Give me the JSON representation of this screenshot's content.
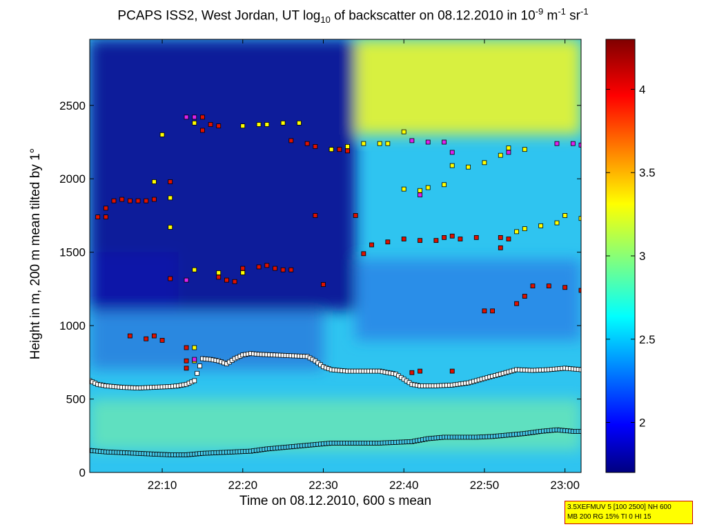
{
  "title": {
    "prefix": "PCAPS ISS2, West Jordan, UT log",
    "sub": "10",
    "middle": " of backscatter on 08.12.2010 in 10",
    "sup1": "-9",
    "unit1": " m",
    "sup2": "-1",
    "unit2": " sr",
    "sup3": "-1"
  },
  "info_box": {
    "line1": "3.5XEFMUV 5 [100 2500] NH 600",
    "line2": "MB 200 RG 15% TI 0 HI 15"
  },
  "colors": {
    "red_marker": "#dd1100",
    "yellow_marker": "#ffff00",
    "magenta_marker": "#dd22ee",
    "white_marker": "#ffffff",
    "cyan_marker": "#44c8e8"
  },
  "chart_data": {
    "type": "heatmap",
    "xlabel": "Time on 08.12.2010, 600 s mean",
    "ylabel": "Height in m, 200 m mean tilted by 1°",
    "xlim": [
      "22:01",
      "23:02"
    ],
    "ylim": [
      0,
      2950
    ],
    "xticks": [
      "22:10",
      "22:20",
      "22:30",
      "22:40",
      "22:50",
      "23:00"
    ],
    "yticks": [
      0,
      500,
      1000,
      1500,
      2000,
      2500
    ],
    "colorbar": {
      "range": [
        1.7,
        4.3
      ],
      "ticks": [
        2,
        2.5,
        3,
        3.5,
        4
      ],
      "colormap": "jet"
    },
    "grid": false,
    "background_field": [
      {
        "t_start": "22:01",
        "t_end": "22:34",
        "h_start": 1100,
        "h_end": 2950,
        "level": "low (< 2.0)"
      },
      {
        "t_start": "22:34",
        "t_end": "23:02",
        "h_start": 2300,
        "h_end": 2950,
        "level": "high (~3.0-3.3)"
      },
      {
        "t_start": "22:01",
        "t_end": "23:02",
        "h_start": 150,
        "h_end": 500,
        "level": "high (~2.8-3.0)"
      }
    ],
    "series": [
      {
        "marker": "square",
        "color": "white",
        "points": [
          [
            "22:01",
            625
          ],
          [
            "22:02",
            600
          ],
          [
            "22:03",
            590
          ],
          [
            "22:05",
            580
          ],
          [
            "22:07",
            575
          ],
          [
            "22:09",
            580
          ],
          [
            "22:11",
            585
          ],
          [
            "22:12",
            590
          ],
          [
            "22:13",
            600
          ],
          [
            "22:14",
            625
          ],
          [
            "22:15",
            775
          ],
          [
            "22:16",
            770
          ],
          [
            "22:17",
            760
          ],
          [
            "22:18",
            740
          ],
          [
            "22:19",
            775
          ],
          [
            "22:20",
            800
          ],
          [
            "22:21",
            810
          ],
          [
            "22:22",
            805
          ],
          [
            "22:24",
            800
          ],
          [
            "22:26",
            795
          ],
          [
            "22:28",
            790
          ],
          [
            "22:29",
            760
          ],
          [
            "22:30",
            720
          ],
          [
            "22:31",
            700
          ],
          [
            "22:33",
            690
          ],
          [
            "22:35",
            690
          ],
          [
            "22:37",
            690
          ],
          [
            "22:39",
            670
          ],
          [
            "22:41",
            600
          ],
          [
            "22:42",
            590
          ],
          [
            "22:44",
            590
          ],
          [
            "22:46",
            595
          ],
          [
            "22:48",
            610
          ],
          [
            "22:50",
            640
          ],
          [
            "22:52",
            670
          ],
          [
            "22:54",
            700
          ],
          [
            "22:56",
            695
          ],
          [
            "22:58",
            700
          ],
          [
            "23:00",
            710
          ],
          [
            "23:02",
            700
          ]
        ]
      },
      {
        "marker": "square",
        "color": "cyan",
        "points": [
          [
            "22:01",
            150
          ],
          [
            "22:03",
            140
          ],
          [
            "22:05",
            135
          ],
          [
            "22:07",
            130
          ],
          [
            "22:09",
            125
          ],
          [
            "22:11",
            120
          ],
          [
            "22:13",
            120
          ],
          [
            "22:15",
            130
          ],
          [
            "22:17",
            135
          ],
          [
            "22:19",
            140
          ],
          [
            "22:21",
            145
          ],
          [
            "22:23",
            160
          ],
          [
            "22:25",
            170
          ],
          [
            "22:27",
            180
          ],
          [
            "22:29",
            190
          ],
          [
            "22:31",
            200
          ],
          [
            "22:33",
            200
          ],
          [
            "22:35",
            200
          ],
          [
            "22:37",
            200
          ],
          [
            "22:39",
            205
          ],
          [
            "22:41",
            210
          ],
          [
            "22:43",
            230
          ],
          [
            "22:45",
            240
          ],
          [
            "22:47",
            240
          ],
          [
            "22:49",
            240
          ],
          [
            "22:51",
            245
          ],
          [
            "22:53",
            255
          ],
          [
            "22:55",
            265
          ],
          [
            "22:57",
            280
          ],
          [
            "22:59",
            290
          ],
          [
            "23:01",
            280
          ],
          [
            "23:02",
            280
          ]
        ]
      },
      {
        "marker": "square",
        "color": "red",
        "points": [
          [
            "22:02",
            1740
          ],
          [
            "22:03",
            1740
          ],
          [
            "22:03",
            1800
          ],
          [
            "22:04",
            1850
          ],
          [
            "22:05",
            1860
          ],
          [
            "22:06",
            1850
          ],
          [
            "22:07",
            1850
          ],
          [
            "22:08",
            1850
          ],
          [
            "22:09",
            1860
          ],
          [
            "22:11",
            1980
          ],
          [
            "22:11",
            1320
          ],
          [
            "22:13",
            850
          ],
          [
            "22:13",
            760
          ],
          [
            "22:13",
            710
          ],
          [
            "22:15",
            2420
          ],
          [
            "22:15",
            2330
          ],
          [
            "22:16",
            2370
          ],
          [
            "22:17",
            2360
          ],
          [
            "22:17",
            1330
          ],
          [
            "22:18",
            1310
          ],
          [
            "22:19",
            1300
          ],
          [
            "22:20",
            1360
          ],
          [
            "22:20",
            1390
          ],
          [
            "22:22",
            1400
          ],
          [
            "22:23",
            1410
          ],
          [
            "22:24",
            1390
          ],
          [
            "22:25",
            1380
          ],
          [
            "22:26",
            1380
          ],
          [
            "22:26",
            2260
          ],
          [
            "22:28",
            2240
          ],
          [
            "22:29",
            2220
          ],
          [
            "22:31",
            2200
          ],
          [
            "22:32",
            2200
          ],
          [
            "22:33",
            2190
          ],
          [
            "22:29",
            1750
          ],
          [
            "22:30",
            1280
          ],
          [
            "22:34",
            1750
          ],
          [
            "22:35",
            1490
          ],
          [
            "22:36",
            1550
          ],
          [
            "22:38",
            1570
          ],
          [
            "22:40",
            1590
          ],
          [
            "22:42",
            1580
          ],
          [
            "22:44",
            1580
          ],
          [
            "22:45",
            1600
          ],
          [
            "22:46",
            1610
          ],
          [
            "22:47",
            1590
          ],
          [
            "22:49",
            1600
          ],
          [
            "22:50",
            1100
          ],
          [
            "22:51",
            1100
          ],
          [
            "22:52",
            1600
          ],
          [
            "22:52",
            1530
          ],
          [
            "22:53",
            1590
          ],
          [
            "22:54",
            1150
          ],
          [
            "22:55",
            1200
          ],
          [
            "22:56",
            1270
          ],
          [
            "22:58",
            1270
          ],
          [
            "23:00",
            1260
          ],
          [
            "23:02",
            1240
          ],
          [
            "22:06",
            930
          ],
          [
            "22:08",
            910
          ],
          [
            "22:09",
            930
          ],
          [
            "22:10",
            900
          ],
          [
            "22:41",
            680
          ],
          [
            "22:42",
            690
          ],
          [
            "22:46",
            690
          ]
        ]
      },
      {
        "marker": "square",
        "color": "yellow",
        "points": [
          [
            "22:09",
            1980
          ],
          [
            "22:10",
            2300
          ],
          [
            "22:11",
            1870
          ],
          [
            "22:11",
            1670
          ],
          [
            "22:14",
            1380
          ],
          [
            "22:14",
            850
          ],
          [
            "22:17",
            1360
          ],
          [
            "22:20",
            1360
          ],
          [
            "22:14",
            2380
          ],
          [
            "22:20",
            2360
          ],
          [
            "22:22",
            2370
          ],
          [
            "22:23",
            2370
          ],
          [
            "22:25",
            2380
          ],
          [
            "22:27",
            2380
          ],
          [
            "22:31",
            2200
          ],
          [
            "22:33",
            2220
          ],
          [
            "22:35",
            2240
          ],
          [
            "22:37",
            2240
          ],
          [
            "22:38",
            2240
          ],
          [
            "22:40",
            2320
          ],
          [
            "22:40",
            1930
          ],
          [
            "22:42",
            1920
          ],
          [
            "22:43",
            1940
          ],
          [
            "22:45",
            1960
          ],
          [
            "22:46",
            2090
          ],
          [
            "22:48",
            2080
          ],
          [
            "22:50",
            2110
          ],
          [
            "22:52",
            2160
          ],
          [
            "22:53",
            2210
          ],
          [
            "22:55",
            2200
          ],
          [
            "22:54",
            1640
          ],
          [
            "22:55",
            1660
          ],
          [
            "22:57",
            1680
          ],
          [
            "22:59",
            1700
          ],
          [
            "23:00",
            1750
          ],
          [
            "23:02",
            1730
          ],
          [
            "22:14",
            760
          ]
        ]
      },
      {
        "marker": "square",
        "color": "magenta",
        "points": [
          [
            "22:13",
            2420
          ],
          [
            "22:14",
            2420
          ],
          [
            "22:13",
            1310
          ],
          [
            "22:14",
            770
          ],
          [
            "22:41",
            2260
          ],
          [
            "22:43",
            2250
          ],
          [
            "22:45",
            2250
          ],
          [
            "22:46",
            2180
          ],
          [
            "22:42",
            1890
          ],
          [
            "22:53",
            2180
          ],
          [
            "22:59",
            2240
          ],
          [
            "23:01",
            2240
          ],
          [
            "23:02",
            2230
          ]
        ]
      }
    ]
  }
}
